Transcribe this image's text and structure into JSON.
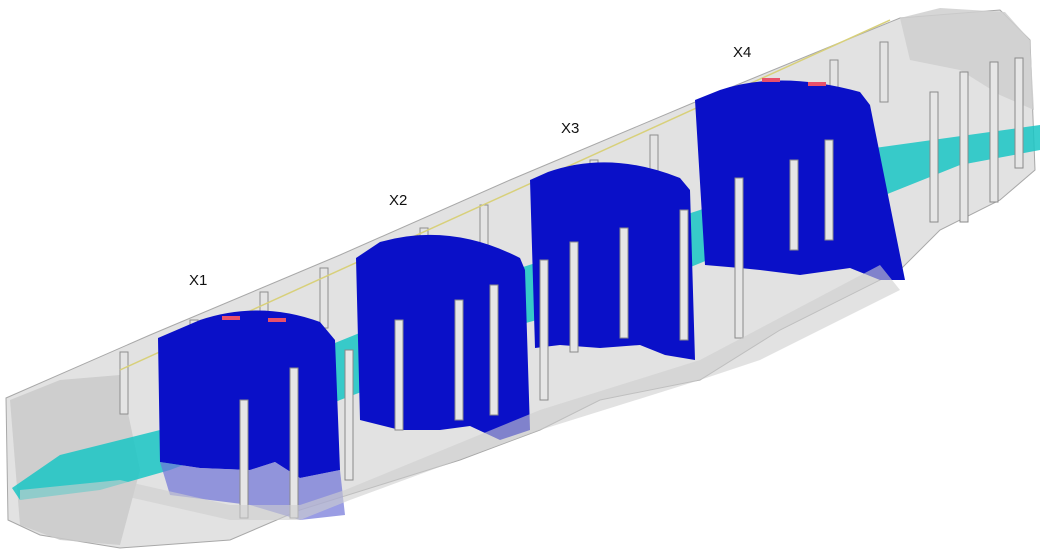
{
  "figure": {
    "sections": [
      {
        "label": "X1"
      },
      {
        "label": "X2"
      },
      {
        "label": "X3"
      },
      {
        "label": "X4"
      }
    ],
    "colors": {
      "cross_section": "#0a10c8",
      "floor_plane": "#19c6c4",
      "shell": "#d2d2d2",
      "shell_edge": "#9a9a9a",
      "guide_line": "#e8e08a",
      "marker": "#e8506a"
    },
    "icons": [
      "train-car-shell",
      "cross-section-plane",
      "floor-plane",
      "roof-centerline",
      "marker"
    ]
  }
}
